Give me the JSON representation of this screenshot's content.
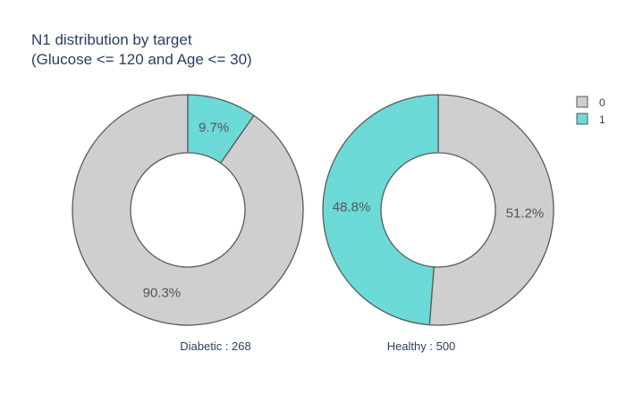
{
  "colors": {
    "0": "#cfcfcf",
    "1": "#6cdad6",
    "stroke": "#5a5a5a",
    "text": "#2a3f5f"
  },
  "chart_data": {
    "type": "pie",
    "title": "N1 distribution by target",
    "subtitle": "(Glucose <= 120 and Age <= 30)",
    "legend": {
      "placement": "top-right",
      "entries": [
        "0",
        "1"
      ]
    },
    "pies": [
      {
        "caption": "Diabetic : 268",
        "slices": [
          {
            "category": "0",
            "value": 90.3,
            "label": "90.3%"
          },
          {
            "category": "1",
            "value": 9.7,
            "label": "9.7%"
          }
        ]
      },
      {
        "caption": "Healthy : 500",
        "slices": [
          {
            "category": "0",
            "value": 51.2,
            "label": "51.2%"
          },
          {
            "category": "1",
            "value": 48.8,
            "label": "48.8%"
          }
        ]
      }
    ]
  }
}
